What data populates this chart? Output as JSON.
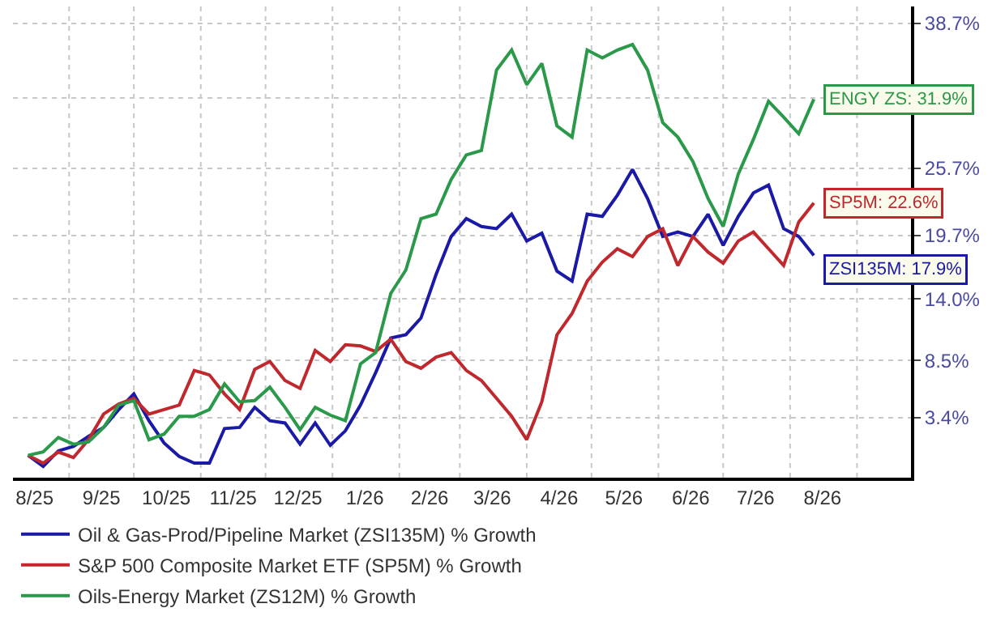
{
  "chart_data": {
    "type": "line",
    "x": [
      "2025-08-13",
      "2025-08-20",
      "2025-08-27",
      "2025-09-03",
      "2025-09-10",
      "2025-09-17",
      "2025-09-24",
      "2025-10-01",
      "2025-10-08",
      "2025-10-15",
      "2025-10-22",
      "2025-10-29",
      "2025-11-05",
      "2025-11-12",
      "2025-11-19",
      "2025-11-26",
      "2025-12-03",
      "2025-12-10",
      "2025-12-17",
      "2025-12-24",
      "2025-12-31",
      "2026-01-07",
      "2026-01-14",
      "2026-01-21",
      "2026-01-28",
      "2026-02-04",
      "2026-02-11",
      "2026-02-18",
      "2026-02-25",
      "2026-03-04",
      "2026-03-11",
      "2026-03-18",
      "2026-03-25",
      "2026-04-01",
      "2026-04-08",
      "2026-04-15",
      "2026-04-22",
      "2026-04-29",
      "2026-05-06",
      "2026-05-13",
      "2026-05-20",
      "2026-05-27",
      "2026-06-03",
      "2026-06-10",
      "2026-06-17",
      "2026-06-24",
      "2026-07-01",
      "2026-07-08",
      "2026-07-15",
      "2026-07-22",
      "2026-07-29",
      "2026-08-05",
      "2026-08-12"
    ],
    "series": [
      {
        "name": "Oil & Gas-Prod/Pipeline Market (ZSI135M) % Growth",
        "color": "#1a1aa6",
        "values": [
          0.0,
          -1.0,
          0.4,
          0.8,
          1.7,
          2.5,
          4.1,
          5.5,
          3.1,
          1.1,
          -0.1,
          -0.7,
          -0.7,
          2.4,
          2.5,
          4.3,
          3.1,
          2.9,
          1.0,
          2.9,
          0.9,
          2.2,
          4.5,
          7.4,
          10.5,
          10.8,
          12.3,
          16.2,
          19.6,
          21.2,
          20.5,
          20.3,
          21.6,
          19.2,
          19.9,
          16.5,
          15.6,
          21.6,
          21.4,
          23.3,
          25.6,
          23.0,
          19.6,
          20.0,
          19.6,
          21.6,
          18.8,
          21.4,
          23.5,
          24.2,
          20.3,
          19.6,
          17.9
        ]
      },
      {
        "name": "S&P 500 Composite Market ETF (SP5M) % Growth",
        "color": "#c0282d",
        "values": [
          0.0,
          -0.7,
          0.3,
          -0.2,
          1.4,
          3.7,
          4.6,
          5.1,
          3.7,
          4.1,
          4.5,
          7.6,
          7.2,
          5.5,
          4.1,
          7.7,
          8.4,
          6.7,
          6.0,
          9.4,
          8.4,
          9.9,
          9.8,
          9.3,
          10.4,
          8.4,
          7.8,
          8.8,
          9.2,
          7.6,
          6.7,
          5.1,
          3.5,
          1.4,
          4.8,
          10.8,
          12.7,
          15.6,
          17.3,
          18.5,
          17.8,
          19.6,
          20.3,
          17.0,
          19.6,
          18.2,
          17.2,
          19.2,
          20.0,
          18.5,
          17.0,
          20.9,
          22.6
        ]
      },
      {
        "name": "Oils-Energy Market (ZS12M) % Growth",
        "color": "#2a9a4a",
        "values": [
          0.0,
          0.3,
          1.6,
          1.0,
          1.2,
          2.5,
          4.5,
          4.9,
          1.4,
          1.9,
          3.5,
          3.5,
          4.1,
          6.4,
          4.8,
          4.9,
          6.1,
          4.3,
          2.3,
          4.3,
          3.6,
          3.1,
          8.2,
          9.2,
          14.5,
          16.6,
          21.2,
          21.6,
          24.7,
          26.9,
          27.3,
          34.5,
          36.3,
          33.2,
          35.1,
          29.5,
          28.5,
          36.3,
          35.6,
          36.3,
          36.8,
          34.5,
          29.8,
          28.5,
          26.3,
          23.0,
          20.5,
          25.2,
          28.3,
          31.7,
          30.3,
          28.8,
          31.9
        ]
      }
    ],
    "annotations": [
      {
        "text": "ENGY ZS: 31.9%",
        "x": "2026-08-12",
        "y": 31.9
      },
      {
        "text": "SP5M: 22.6%",
        "x": "2026-08-12",
        "y": 22.6
      },
      {
        "text": "ZSI135M: 17.9%",
        "x": "2026-08-12",
        "y": 17.9
      }
    ],
    "xlim": [
      "2025-08-06",
      "2026-09-26"
    ],
    "xticks": [
      {
        "value": "2025-08-16",
        "label": "8/25"
      },
      {
        "value": "2025-09-01",
        "label": null
      },
      {
        "value": "2025-09-16",
        "label": "9/25"
      },
      {
        "value": "2025-10-01",
        "label": null
      },
      {
        "value": "2025-10-16",
        "label": "10/25"
      },
      {
        "value": "2025-11-01",
        "label": null
      },
      {
        "value": "2025-11-16",
        "label": "11/25"
      },
      {
        "value": "2025-12-01",
        "label": null
      },
      {
        "value": "2025-12-16",
        "label": "12/25"
      },
      {
        "value": "2026-01-01",
        "label": null
      },
      {
        "value": "2026-01-16",
        "label": "1/26"
      },
      {
        "value": "2026-02-01",
        "label": null
      },
      {
        "value": "2026-02-15",
        "label": "2/26"
      },
      {
        "value": "2026-03-01",
        "label": null
      },
      {
        "value": "2026-03-16",
        "label": "3/26"
      },
      {
        "value": "2026-04-01",
        "label": null
      },
      {
        "value": "2026-04-16",
        "label": "4/26"
      },
      {
        "value": "2026-05-01",
        "label": null
      },
      {
        "value": "2026-05-16",
        "label": "5/26"
      },
      {
        "value": "2026-06-01",
        "label": null
      },
      {
        "value": "2026-06-16",
        "label": "6/26"
      },
      {
        "value": "2026-07-01",
        "label": null
      },
      {
        "value": "2026-07-16",
        "label": "7/26"
      },
      {
        "value": "2026-08-01",
        "label": null
      },
      {
        "value": "2026-08-16",
        "label": "8/26"
      },
      {
        "value": "2026-09-01",
        "label": null
      }
    ],
    "ylim": [
      -2.0,
      40.2
    ],
    "yticks": [
      {
        "value": 3.4,
        "label": "3.4%"
      },
      {
        "value": 8.5,
        "label": "8.5%"
      },
      {
        "value": 14.0,
        "label": "14.0%"
      },
      {
        "value": 19.7,
        "label": "19.7%"
      },
      {
        "value": 25.7,
        "label": "25.7%"
      },
      {
        "value": 32.0,
        "label": null
      },
      {
        "value": 38.7,
        "label": "38.7%"
      }
    ],
    "grid": true,
    "legend": "bottom",
    "marker": "none",
    "line_style": "solid"
  }
}
